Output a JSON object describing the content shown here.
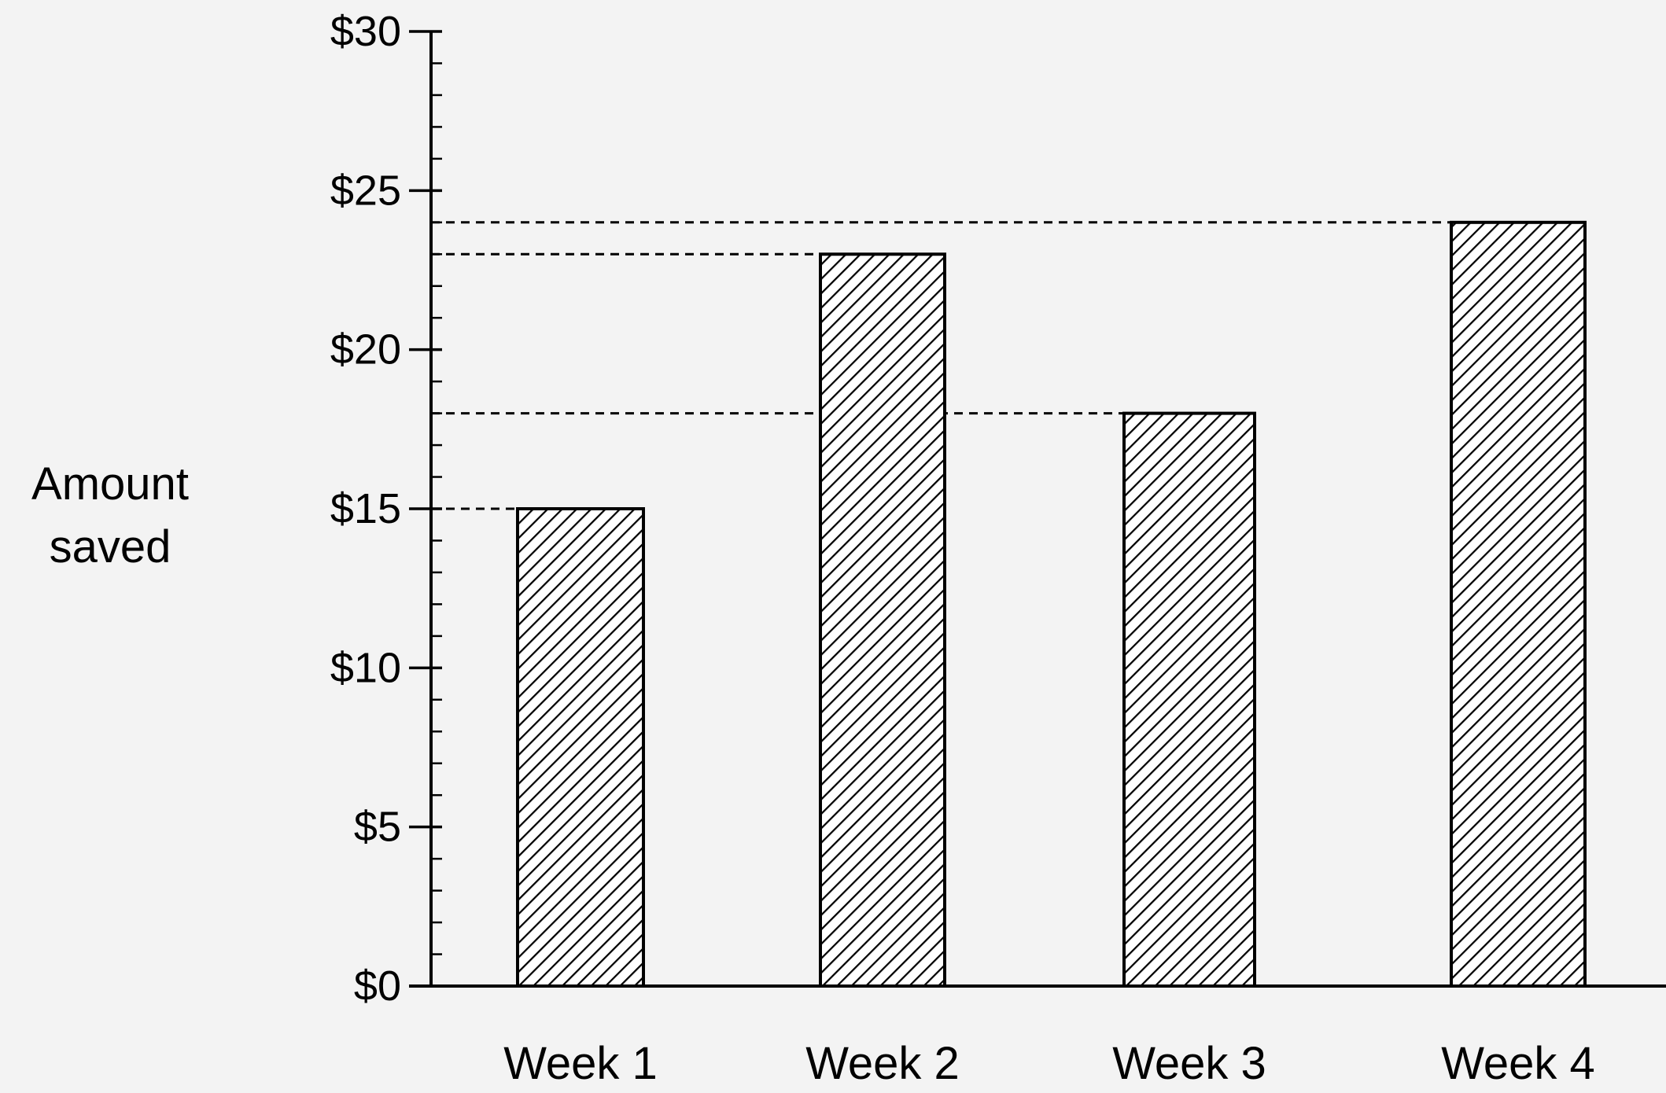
{
  "chart_data": {
    "type": "bar",
    "categories": [
      "Week 1",
      "Week 2",
      "Week 3",
      "Week 4"
    ],
    "values": [
      15,
      23,
      18,
      24
    ],
    "ylabel": [
      "Amount",
      "saved"
    ],
    "xlabel": "",
    "ylim": [
      0,
      30
    ],
    "yticks": [
      {
        "value": 0,
        "label": "$0"
      },
      {
        "value": 5,
        "label": "$5"
      },
      {
        "value": 10,
        "label": "$10"
      },
      {
        "value": 15,
        "label": "$15"
      },
      {
        "value": 20,
        "label": "$20"
      },
      {
        "value": 25,
        "label": "$25"
      },
      {
        "value": 30,
        "label": "$30"
      }
    ],
    "minor_tick_step": 1,
    "reference_lines": "dashed lines from y-axis to each bar top",
    "bar_fill": "diagonal hatch",
    "grid": false,
    "legend": "none"
  }
}
